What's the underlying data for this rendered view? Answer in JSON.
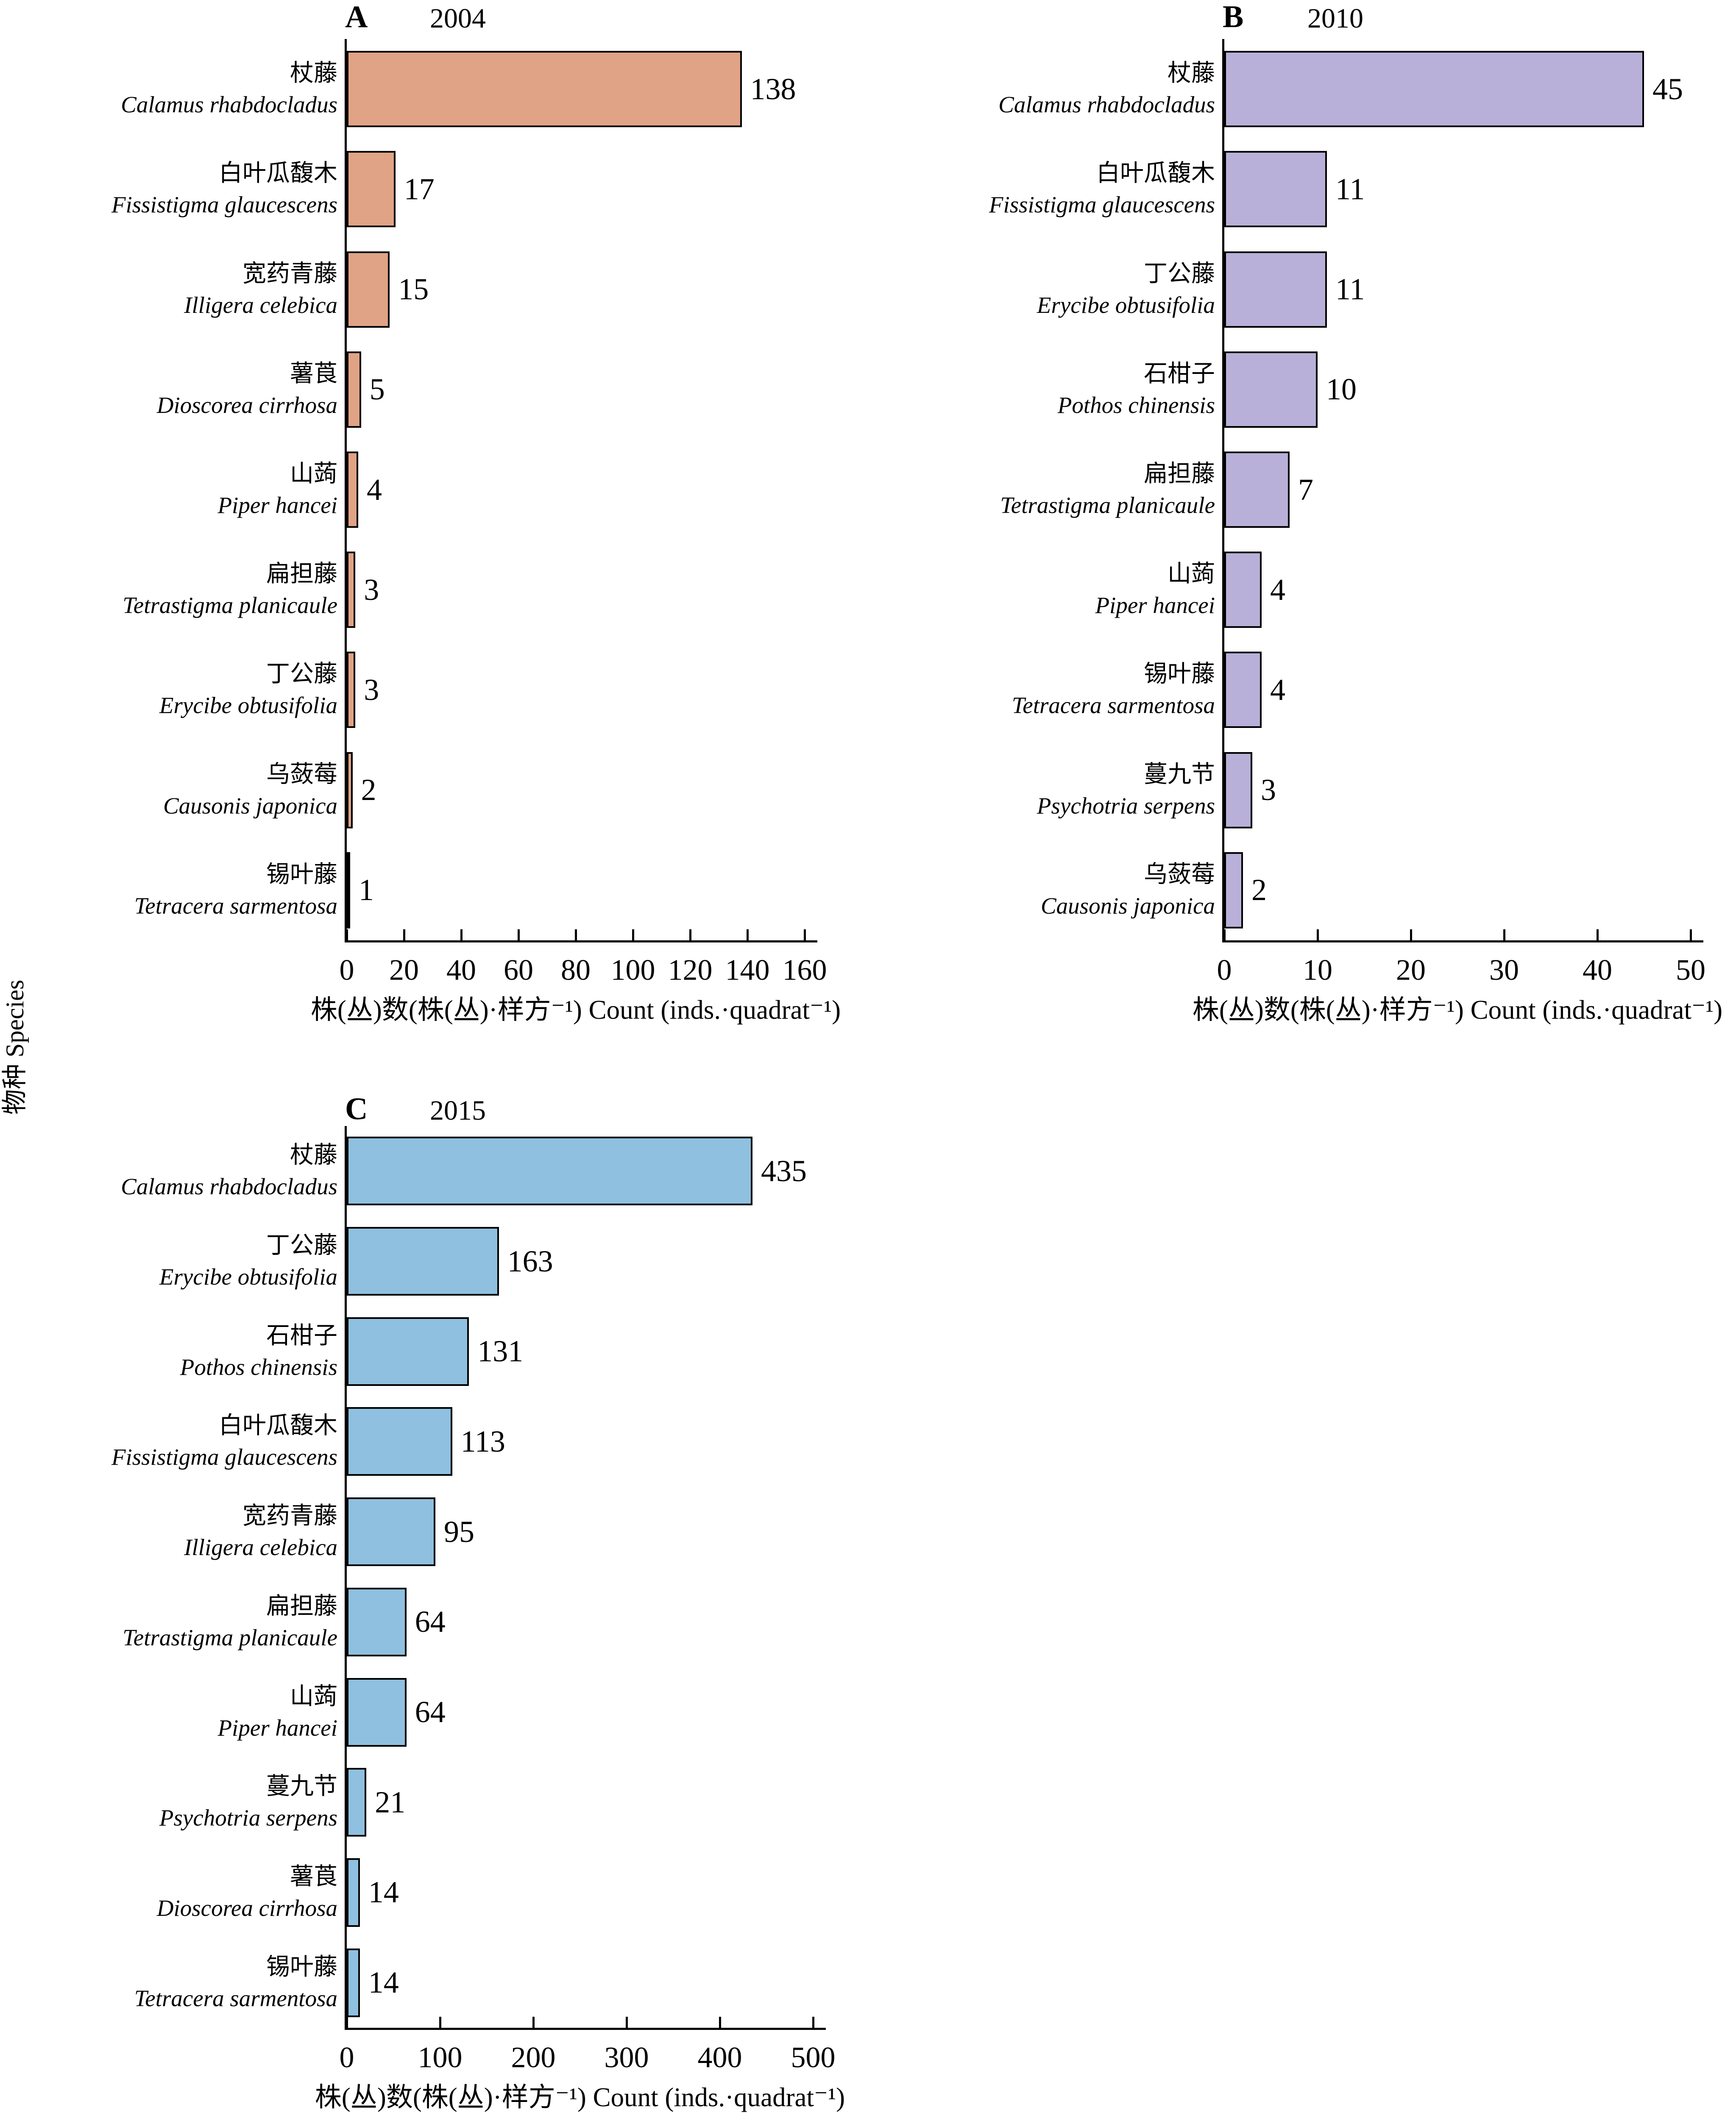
{
  "figure": {
    "y_axis_label": "物种 Species",
    "x_axis_label": "株(丛)数(株(丛)·样方⁻¹) Count (inds.·quadrat⁻¹)",
    "background_color": "#ffffff",
    "axis_color": "#000000",
    "text_color": "#000000"
  },
  "chart_data": [
    {
      "type": "bar",
      "panel_label": "A",
      "title": "2004",
      "orientation": "horizontal",
      "bar_color": "#E0A385",
      "bar_border_color": "#000000",
      "xlim": [
        0,
        160
      ],
      "x_ticks": [
        0,
        20,
        40,
        60,
        80,
        100,
        120,
        140,
        160
      ],
      "xlabel": "株(丛)数(株(丛)·样方⁻¹) Count (inds.·quadrat⁻¹)",
      "ylabel": "物种 Species",
      "grid": false,
      "legend": false,
      "series": [
        {
          "name_zh": "杖藤",
          "name_latin": "Calamus rhabdocladus",
          "value": 138
        },
        {
          "name_zh": "白叶瓜馥木",
          "name_latin": "Fissistigma glaucescens",
          "value": 17
        },
        {
          "name_zh": "宽药青藤",
          "name_latin": "Illigera celebica",
          "value": 15
        },
        {
          "name_zh": "薯莨",
          "name_latin": "Dioscorea cirrhosa",
          "value": 5
        },
        {
          "name_zh": "山蒟",
          "name_latin": "Piper hancei",
          "value": 4
        },
        {
          "name_zh": "扁担藤",
          "name_latin": "Tetrastigma planicaule",
          "value": 3
        },
        {
          "name_zh": "丁公藤",
          "name_latin": "Erycibe obtusifolia",
          "value": 3
        },
        {
          "name_zh": "乌蔹莓",
          "name_latin": "Causonis japonica",
          "value": 2
        },
        {
          "name_zh": "锡叶藤",
          "name_latin": "Tetracera sarmentosa",
          "value": 1
        }
      ]
    },
    {
      "type": "bar",
      "panel_label": "B",
      "title": "2010",
      "orientation": "horizontal",
      "bar_color": "#B8B0D8",
      "bar_border_color": "#000000",
      "xlim": [
        0,
        50
      ],
      "x_ticks": [
        0,
        10,
        20,
        30,
        40,
        50
      ],
      "xlabel": "株(丛)数(株(丛)·样方⁻¹) Count (inds.·quadrat⁻¹)",
      "ylabel": "物种 Species",
      "grid": false,
      "legend": false,
      "series": [
        {
          "name_zh": "杖藤",
          "name_latin": "Calamus rhabdocladus",
          "value": 45
        },
        {
          "name_zh": "白叶瓜馥木",
          "name_latin": "Fissistigma glaucescens",
          "value": 11
        },
        {
          "name_zh": "丁公藤",
          "name_latin": "Erycibe obtusifolia",
          "value": 11
        },
        {
          "name_zh": "石柑子",
          "name_latin": "Pothos chinensis",
          "value": 10
        },
        {
          "name_zh": "扁担藤",
          "name_latin": "Tetrastigma planicaule",
          "value": 7
        },
        {
          "name_zh": "山蒟",
          "name_latin": "Piper hancei",
          "value": 4
        },
        {
          "name_zh": "锡叶藤",
          "name_latin": "Tetracera sarmentosa",
          "value": 4
        },
        {
          "name_zh": "蔓九节",
          "name_latin": "Psychotria serpens",
          "value": 3
        },
        {
          "name_zh": "乌蔹莓",
          "name_latin": "Causonis japonica",
          "value": 2
        }
      ]
    },
    {
      "type": "bar",
      "panel_label": "C",
      "title": "2015",
      "orientation": "horizontal",
      "bar_color": "#8FC0DF",
      "bar_border_color": "#000000",
      "xlim": [
        0,
        500
      ],
      "x_ticks": [
        0,
        100,
        200,
        300,
        400,
        500
      ],
      "xlabel": "株(丛)数(株(丛)·样方⁻¹) Count (inds.·quadrat⁻¹)",
      "ylabel": "物种 Species",
      "grid": false,
      "legend": false,
      "series": [
        {
          "name_zh": "杖藤",
          "name_latin": "Calamus rhabdocladus",
          "value": 435
        },
        {
          "name_zh": "丁公藤",
          "name_latin": "Erycibe obtusifolia",
          "value": 163
        },
        {
          "name_zh": "石柑子",
          "name_latin": "Pothos chinensis",
          "value": 131
        },
        {
          "name_zh": "白叶瓜馥木",
          "name_latin": "Fissistigma glaucescens",
          "value": 113
        },
        {
          "name_zh": "宽药青藤",
          "name_latin": "Illigera celebica",
          "value": 95
        },
        {
          "name_zh": "扁担藤",
          "name_latin": "Tetrastigma planicaule",
          "value": 64
        },
        {
          "name_zh": "山蒟",
          "name_latin": "Piper hancei",
          "value": 64
        },
        {
          "name_zh": "蔓九节",
          "name_latin": "Psychotria serpens",
          "value": 21
        },
        {
          "name_zh": "薯莨",
          "name_latin": "Dioscorea cirrhosa",
          "value": 14
        },
        {
          "name_zh": "锡叶藤",
          "name_latin": "Tetracera sarmentosa",
          "value": 14
        }
      ]
    }
  ]
}
